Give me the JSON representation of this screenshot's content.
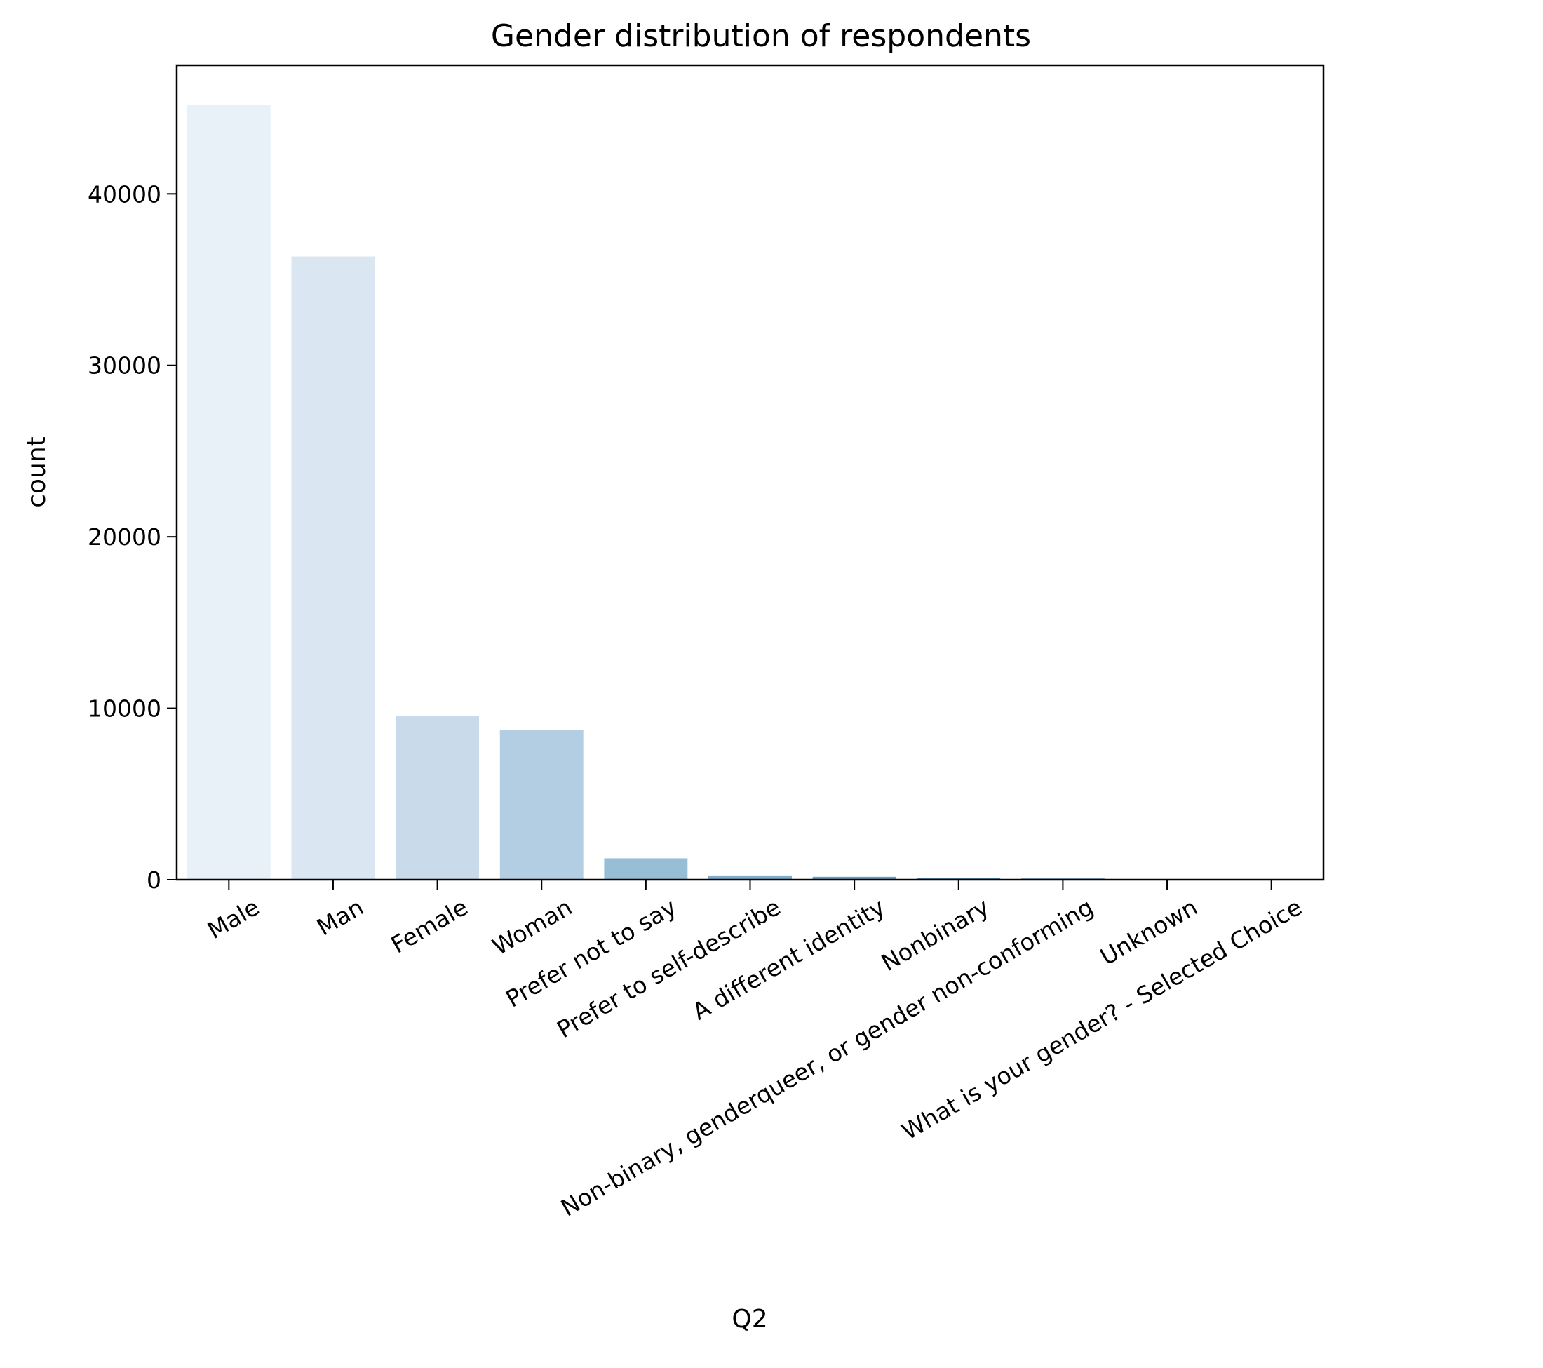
{
  "chart_data": {
    "type": "bar",
    "title": "Gender distribution of respondents",
    "xlabel": "Q2",
    "ylabel": "count",
    "categories": [
      "Male",
      "Man",
      "Female",
      "Woman",
      "Prefer not to say",
      "Prefer to self-describe",
      "A different identity",
      "Nonbinary",
      "Non-binary, genderqueer, or gender non-conforming",
      "Unknown",
      "What is your gender? - Selected Choice"
    ],
    "values": [
      45200,
      36350,
      9550,
      8750,
      1250,
      250,
      170,
      110,
      70,
      40,
      5
    ],
    "ylim": [
      0,
      47500
    ],
    "yticks": [
      0,
      10000,
      20000,
      30000,
      40000
    ],
    "colors": [
      "#e8f0f8",
      "#dae6f1",
      "#c9dbea",
      "#b3cee2",
      "#96bfd6",
      "#7eaecb",
      "#6b9fc0",
      "#5b8fb4",
      "#4d81a9",
      "#41739c",
      "#34668f"
    ],
    "grid": false,
    "legend": "none"
  }
}
